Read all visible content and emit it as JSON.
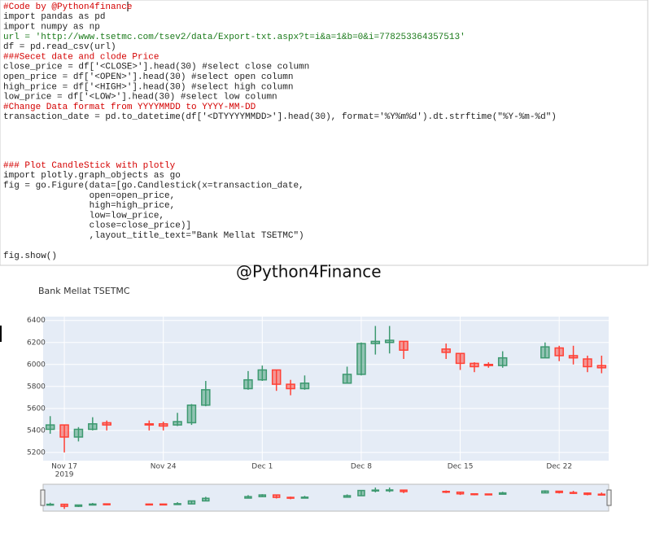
{
  "code": {
    "blocks": [
      {
        "lines": [
          {
            "text": "#Code by @Python4finance",
            "color": "#d40000"
          },
          {
            "text": "import pandas as pd",
            "color": "#222222"
          },
          {
            "text": "import numpy as np",
            "color": "#222222"
          },
          {
            "text": "url = 'http://www.tsetmc.com/tsev2/data/Export-txt.aspx?t=i&a=1&b=0&i=778253364357513'",
            "color": "#1a7a1a"
          },
          {
            "text": "df = pd.read_csv(url)",
            "color": "#222222"
          },
          {
            "text": "###Secet date and clode Price",
            "color": "#d40000"
          },
          {
            "text": "close_price = df['<CLOSE>'].head(30) #select close column",
            "color": "#222222"
          },
          {
            "text": "open_price = df['<OPEN>'].head(30) #select open column",
            "color": "#222222"
          },
          {
            "text": "high_price = df['<HIGH>'].head(30) #select high column",
            "color": "#222222"
          },
          {
            "text": "low_price = df['<LOW>'].head(30) #select low column",
            "color": "#222222"
          },
          {
            "text": "#Change Data format from YYYYMMDD to YYYY-MM-DD",
            "color": "#d40000"
          },
          {
            "text": "transaction_date = pd.to_datetime(df['<DTYYYYMMDD>'].head(30), format='%Y%m%d').dt.strftime(\"%Y-%m-%d\")",
            "color": "#222222"
          }
        ]
      },
      {
        "lines": [
          {
            "text": "### Plot CandleStick with plotly",
            "color": "#d40000"
          },
          {
            "text": "import plotly.graph_objects as go",
            "color": "#222222"
          },
          {
            "text": "fig = go.Figure(data=[go.Candlestick(x=transaction_date,",
            "color": "#222222"
          },
          {
            "text": "                open=open_price,",
            "color": "#222222"
          },
          {
            "text": "                high=high_price,",
            "color": "#222222"
          },
          {
            "text": "                low=low_price,",
            "color": "#222222"
          },
          {
            "text": "                close=close_price)]",
            "color": "#222222"
          },
          {
            "text": "                ,layout_title_text=\"Bank Mellat TSETMC\")",
            "color": "#222222"
          }
        ]
      },
      {
        "lines": [
          {
            "text": "fig.show()",
            "color": "#222222"
          }
        ]
      }
    ]
  },
  "watermark": "@Python4Finance",
  "chart_data": {
    "type": "candlestick",
    "title": "Bank Mellat TSETMC",
    "x": [
      "2019-11-16",
      "2019-11-17",
      "2019-11-18",
      "2019-11-19",
      "2019-11-20",
      "2019-11-23",
      "2019-11-24",
      "2019-11-25",
      "2019-11-26",
      "2019-11-27",
      "2019-11-30",
      "2019-12-01",
      "2019-12-02",
      "2019-12-03",
      "2019-12-04",
      "2019-12-07",
      "2019-12-08",
      "2019-12-09",
      "2019-12-10",
      "2019-12-11",
      "2019-12-14",
      "2019-12-15",
      "2019-12-16",
      "2019-12-17",
      "2019-12-18",
      "2019-12-21",
      "2019-12-22",
      "2019-12-23",
      "2019-12-24",
      "2019-12-25"
    ],
    "open": [
      5410,
      5450,
      5340,
      5410,
      5470,
      5460,
      5460,
      5450,
      5470,
      5630,
      5780,
      5860,
      5950,
      5820,
      5780,
      5830,
      5910,
      6190,
      6200,
      6210,
      6140,
      6100,
      6010,
      6000,
      5990,
      6060,
      6150,
      6080,
      6050,
      5990
    ],
    "high": [
      5530,
      5450,
      5430,
      5520,
      5490,
      5490,
      5480,
      5560,
      5640,
      5850,
      5940,
      5990,
      5950,
      5860,
      5900,
      5980,
      6200,
      6350,
      6350,
      6210,
      6190,
      6100,
      6020,
      6020,
      6120,
      6200,
      6170,
      6170,
      6080,
      6080
    ],
    "low": [
      5370,
      5200,
      5300,
      5400,
      5400,
      5400,
      5400,
      5440,
      5450,
      5620,
      5770,
      5850,
      5760,
      5720,
      5770,
      5830,
      5900,
      6090,
      6100,
      6050,
      6050,
      5950,
      5930,
      5970,
      5970,
      6060,
      6030,
      6000,
      5930,
      5920
    ],
    "close": [
      5450,
      5340,
      5410,
      5460,
      5450,
      5450,
      5440,
      5480,
      5630,
      5770,
      5860,
      5950,
      5820,
      5780,
      5830,
      5910,
      6190,
      6210,
      6220,
      6130,
      6110,
      6010,
      5980,
      5990,
      6060,
      6160,
      6080,
      6060,
      5980,
      5970
    ],
    "increasing_color": "#3d9970",
    "decreasing_color": "#ff4136",
    "xlim": [
      "2019-11-15T12:00:00Z",
      "2019-12-25T12:00:00Z"
    ],
    "xticks": [
      {
        "value": "2019-11-17",
        "label": "Nov 17"
      },
      {
        "value": "2019-11-24",
        "label": "Nov 24"
      },
      {
        "value": "2019-12-01",
        "label": "Dec 1"
      },
      {
        "value": "2019-12-08",
        "label": "Dec 8"
      },
      {
        "value": "2019-12-15",
        "label": "Dec 15"
      },
      {
        "value": "2019-12-22",
        "label": "Dec 22"
      }
    ],
    "xtick_year": "2019",
    "ylim": [
      5125,
      6435
    ],
    "yticks": [
      5200,
      5400,
      5600,
      5800,
      6000,
      6200,
      6400
    ],
    "grid": true,
    "rangeslider": true
  }
}
